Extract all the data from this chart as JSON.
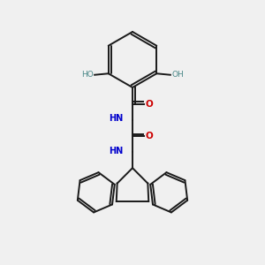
{
  "background_color": "#f0f0f0",
  "bond_color": "#1a1a1a",
  "N_color": "#0000cc",
  "O_color": "#cc0000",
  "OH_color": "#4a8888",
  "lw": 1.4,
  "xlim": [
    0,
    10
  ],
  "ylim": [
    0,
    10
  ],
  "figsize": [
    3.0,
    3.0
  ],
  "dpi": 100
}
